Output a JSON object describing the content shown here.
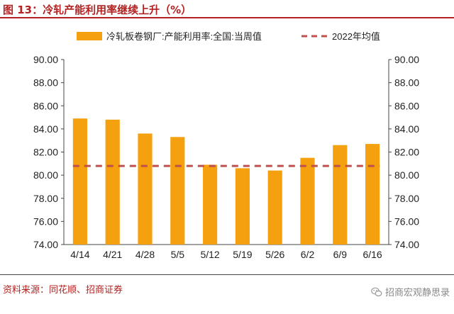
{
  "header": {
    "figure_title": "图 13：冷轧产能利用率继续上升（%）"
  },
  "footer": {
    "source": "资料来源：同花顺、招商证券",
    "watermark_text": "招商宏观静思录",
    "watermark_icon": "wechat-icon"
  },
  "colors": {
    "bar": "#f5a00f",
    "avg_line": "#c0504d",
    "title": "#b22222",
    "axis": "#444444"
  },
  "chart_data": {
    "type": "bar",
    "categories": [
      "4/14",
      "4/21",
      "4/28",
      "5/5",
      "5/12",
      "5/19",
      "5/26",
      "6/2",
      "6/9",
      "6/16"
    ],
    "series": [
      {
        "name": "冷轧板卷钢厂:产能利用率:全国:当周值",
        "type": "bar",
        "values": [
          84.9,
          84.8,
          83.6,
          83.3,
          80.9,
          80.6,
          80.4,
          81.5,
          82.6,
          82.7
        ]
      },
      {
        "name": "2022年均值",
        "type": "line",
        "style": "dashed",
        "values": [
          80.8,
          80.8,
          80.8,
          80.8,
          80.8,
          80.8,
          80.8,
          80.8,
          80.8,
          80.8
        ]
      }
    ],
    "ylim": [
      74,
      90
    ],
    "yticks": [
      "74.00",
      "76.00",
      "78.00",
      "80.00",
      "82.00",
      "84.00",
      "86.00",
      "88.00",
      "90.00"
    ],
    "y_right_ticks": [
      "74.00",
      "76.00",
      "78.00",
      "80.00",
      "82.00",
      "84.00",
      "86.00",
      "88.00",
      "90.00"
    ],
    "grid": false,
    "legend_position": "top"
  }
}
